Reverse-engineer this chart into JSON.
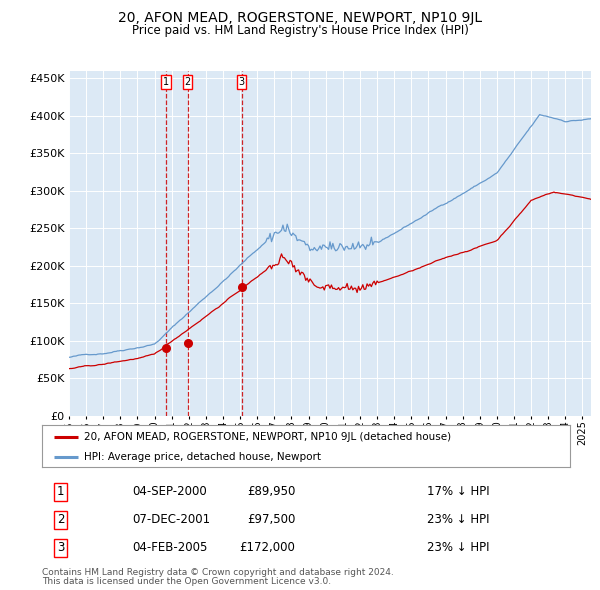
{
  "title": "20, AFON MEAD, ROGERSTONE, NEWPORT, NP10 9JL",
  "subtitle": "Price paid vs. HM Land Registry's House Price Index (HPI)",
  "legend_line1": "20, AFON MEAD, ROGERSTONE, NEWPORT, NP10 9JL (detached house)",
  "legend_line2": "HPI: Average price, detached house, Newport",
  "transactions": [
    {
      "num": 1,
      "date": "04-SEP-2000",
      "price": 89950,
      "pct": "17%",
      "dir": "↓"
    },
    {
      "num": 2,
      "date": "07-DEC-2001",
      "price": 97500,
      "pct": "23%",
      "dir": "↓"
    },
    {
      "num": 3,
      "date": "04-FEB-2005",
      "price": 172000,
      "pct": "23%",
      "dir": "↓"
    }
  ],
  "footer1": "Contains HM Land Registry data © Crown copyright and database right 2024.",
  "footer2": "This data is licensed under the Open Government Licence v3.0.",
  "transaction_dates_decimal": [
    2000.674,
    2001.927,
    2005.088
  ],
  "transaction_prices": [
    89950,
    97500,
    172000
  ],
  "plot_bg_color": "#dce9f5",
  "red_line_color": "#cc0000",
  "blue_line_color": "#6699cc",
  "grid_color": "#ffffff",
  "vline_color": "#cc0000",
  "ylim": [
    0,
    460000
  ],
  "xlim_start": 1995.0,
  "xlim_end": 2025.5,
  "yticks": [
    0,
    50000,
    100000,
    150000,
    200000,
    250000,
    300000,
    350000,
    400000,
    450000
  ]
}
